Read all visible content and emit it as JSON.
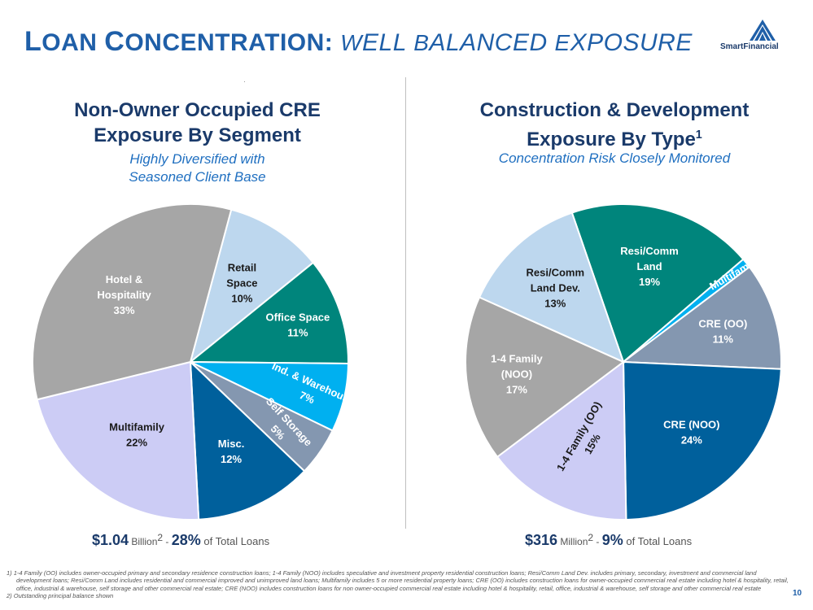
{
  "header": {
    "title_main_initial": "L",
    "title_main_rest": "OAN ",
    "title_main_initial2": "C",
    "title_main_rest2": "ONCENTRATION:",
    "title_sub_w": "W",
    "title_sub_ell": "ELL ",
    "title_sub_b": "B",
    "title_sub_alanced": "ALANCED ",
    "title_sub_e": "E",
    "title_sub_xposure": "XPOSURE",
    "logo_text": "SmartFinancial"
  },
  "colors": {
    "title_blue": "#1f5fa8",
    "dark_navy": "#1a3a6a",
    "subtitle_blue": "#1f6fc0"
  },
  "chart_data": [
    {
      "type": "pie",
      "title_line1": "Non-Owner Occupied CRE",
      "title_line2": "Exposure By Segment",
      "subtitle_line1": "Highly Diversified with",
      "subtitle_line2": "Seasoned Client Base",
      "slices": [
        {
          "label": "Retail\nSpace",
          "value": 10,
          "pct_text": "10%",
          "color": "#bdd7ee",
          "text_color": "#1a1a1a"
        },
        {
          "label": "Office Space",
          "value": 11,
          "pct_text": "11%",
          "color": "#00857c",
          "text_color": "#ffffff"
        },
        {
          "label": "Ind. & Warehouse",
          "value": 7,
          "pct_text": "7%",
          "color": "#00b0f0",
          "text_color": "#ffffff"
        },
        {
          "label": "Self Storage",
          "value": 5,
          "pct_text": "5%",
          "color": "#8497b0",
          "text_color": "#ffffff"
        },
        {
          "label": "Misc.",
          "value": 12,
          "pct_text": "12%",
          "color": "#00609c",
          "text_color": "#ffffff"
        },
        {
          "label": "Multifamily",
          "value": 22,
          "pct_text": "22%",
          "color": "#ccccf5",
          "text_color": "#1a1a1a"
        },
        {
          "label": "Hotel &\nHospitality",
          "value": 33,
          "pct_text": "33%",
          "color": "#a6a6a6",
          "text_color": "#ffffff"
        }
      ],
      "total": {
        "amount": "$1.04",
        "unit": "Billion",
        "unit_note": "2",
        "sep": " - ",
        "pct": "28%",
        "rest": " of Total Loans"
      }
    },
    {
      "type": "pie",
      "title_line1": "Construction & Development",
      "title_line2": "Exposure By Type",
      "title_note": "1",
      "subtitle_line1": "Concentration Risk Closely Monitored",
      "slices": [
        {
          "label": "Resi/Comm\nLand",
          "value": 19,
          "pct_text": "19%",
          "color": "#00857c",
          "text_color": "#ffffff"
        },
        {
          "label": "Multifamily",
          "value": 1,
          "pct_text": "",
          "color": "#00b0f0",
          "text_color": "#ffffff"
        },
        {
          "label": "CRE (OO)",
          "value": 11,
          "pct_text": "11%",
          "color": "#8497b0",
          "text_color": "#ffffff"
        },
        {
          "label": "CRE (NOO)",
          "value": 24,
          "pct_text": "24%",
          "color": "#00609c",
          "text_color": "#ffffff"
        },
        {
          "label": "1-4 Family (OO)",
          "value": 15,
          "pct_text": "15%",
          "color": "#ccccf5",
          "text_color": "#1a1a1a"
        },
        {
          "label": "1-4 Family\n(NOO)",
          "value": 17,
          "pct_text": "17%",
          "color": "#a6a6a6",
          "text_color": "#ffffff"
        },
        {
          "label": "Resi/Comm\nLand Dev.",
          "value": 13,
          "pct_text": "13%",
          "color": "#bdd7ee",
          "text_color": "#1a1a1a"
        }
      ],
      "total": {
        "amount": "$316",
        "unit": "Million",
        "unit_note": "2",
        "sep": " - ",
        "pct": "9%",
        "rest": " of Total Loans"
      }
    }
  ],
  "footnotes": [
    "1)  1-4 Family (OO) includes owner-occupied primary and secondary residence construction loans; 1-4 Family (NOO) includes speculative and investment property residential construction loans; Resi/Comm Land Dev. includes primary, secondary, investment and commercial land development loans; Resi/Comm Land includes residential and commercial improved and unimproved  land loans; Multifamily includes 5 or more residential property loans; CRE (OO) includes construction loans for owner-occupied commercial real estate including hotel & hospitality, retail, office, industrial & warehouse, self storage and other commercial real estate; CRE (NOO) includes construction loans for non owner-occupied commercial real estate including hotel & hospitality, retail, office, industrial & warehouse, self storage and other commercial real estate",
    "2)  Outstanding principal balance shown"
  ],
  "page_number": "10"
}
